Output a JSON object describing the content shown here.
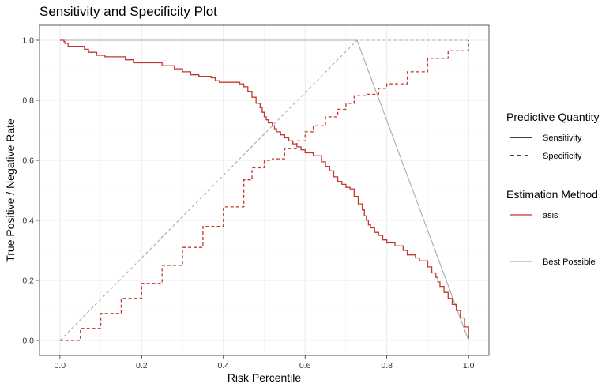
{
  "chart_data": {
    "type": "line",
    "title": "Sensitivity and Specificity Plot",
    "xlabel": "Risk Percentile",
    "ylabel": "True Positive / Negative Rate",
    "xlim": [
      -0.05,
      1.05
    ],
    "ylim": [
      -0.05,
      1.05
    ],
    "xticks": [
      "0.0",
      "0.2",
      "0.4",
      "0.6",
      "0.8",
      "1.0"
    ],
    "yticks": [
      "0.0",
      "0.2",
      "0.4",
      "0.6",
      "0.8",
      "1.0"
    ],
    "grid": true,
    "legend_position": "right",
    "legend": {
      "quantity_title": "Predictive Quantity",
      "quantity_items": [
        {
          "label": "Sensitivity",
          "linestyle": "solid"
        },
        {
          "label": "Specificity",
          "linestyle": "dashed"
        }
      ],
      "method_title": "Estimation Method",
      "method_items": [
        {
          "label": "asis",
          "color": "#c0392b"
        },
        {
          "label": "Best Possible",
          "color": "#aaaaaa"
        }
      ]
    },
    "series": [
      {
        "name": "asis",
        "quantity": "Sensitivity",
        "color": "#c0392b",
        "linestyle": "solid",
        "step": true,
        "x": [
          0.0,
          0.01,
          0.012,
          0.02,
          0.04,
          0.05,
          0.06,
          0.07,
          0.09,
          0.11,
          0.16,
          0.18,
          0.19,
          0.25,
          0.26,
          0.28,
          0.3,
          0.32,
          0.34,
          0.37,
          0.38,
          0.39,
          0.44,
          0.45,
          0.46,
          0.47,
          0.48,
          0.49,
          0.495,
          0.5,
          0.505,
          0.51,
          0.515,
          0.52,
          0.525,
          0.53,
          0.54,
          0.55,
          0.56,
          0.57,
          0.58,
          0.59,
          0.6,
          0.62,
          0.64,
          0.65,
          0.66,
          0.67,
          0.68,
          0.69,
          0.7,
          0.71,
          0.72,
          0.73,
          0.74,
          0.745,
          0.75,
          0.755,
          0.76,
          0.77,
          0.78,
          0.79,
          0.8,
          0.82,
          0.84,
          0.85,
          0.87,
          0.88,
          0.9,
          0.91,
          0.92,
          0.925,
          0.93,
          0.94,
          0.95,
          0.96,
          0.97,
          0.98,
          0.99,
          1.0
        ],
        "y": [
          1.0,
          0.995,
          0.99,
          0.98,
          0.98,
          0.98,
          0.97,
          0.96,
          0.95,
          0.945,
          0.935,
          0.925,
          0.925,
          0.915,
          0.915,
          0.905,
          0.895,
          0.885,
          0.88,
          0.875,
          0.865,
          0.86,
          0.855,
          0.845,
          0.83,
          0.81,
          0.79,
          0.775,
          0.76,
          0.745,
          0.735,
          0.725,
          0.725,
          0.715,
          0.705,
          0.695,
          0.685,
          0.675,
          0.665,
          0.655,
          0.645,
          0.635,
          0.625,
          0.615,
          0.595,
          0.58,
          0.565,
          0.545,
          0.53,
          0.52,
          0.51,
          0.505,
          0.48,
          0.455,
          0.435,
          0.415,
          0.4,
          0.385,
          0.375,
          0.36,
          0.35,
          0.335,
          0.325,
          0.315,
          0.3,
          0.285,
          0.275,
          0.265,
          0.245,
          0.225,
          0.21,
          0.195,
          0.18,
          0.16,
          0.14,
          0.12,
          0.1,
          0.075,
          0.045,
          0.005
        ]
      },
      {
        "name": "asis",
        "quantity": "Specificity",
        "color": "#c0392b",
        "linestyle": "dashed",
        "step": true,
        "x": [
          0.0,
          0.05,
          0.1,
          0.15,
          0.2,
          0.25,
          0.3,
          0.35,
          0.4,
          0.45,
          0.47,
          0.5,
          0.52,
          0.55,
          0.58,
          0.6,
          0.62,
          0.65,
          0.68,
          0.7,
          0.72,
          0.75,
          0.78,
          0.8,
          0.85,
          0.9,
          0.95,
          1.0
        ],
        "y": [
          0.0,
          0.04,
          0.09,
          0.14,
          0.19,
          0.25,
          0.31,
          0.38,
          0.445,
          0.535,
          0.575,
          0.6,
          0.605,
          0.64,
          0.665,
          0.695,
          0.715,
          0.745,
          0.77,
          0.79,
          0.815,
          0.82,
          0.84,
          0.855,
          0.895,
          0.94,
          0.965,
          1.0
        ]
      },
      {
        "name": "Best Possible",
        "quantity": "Sensitivity",
        "color": "#aaaaaa",
        "linestyle": "solid",
        "x": [
          0.0,
          0.727,
          1.0
        ],
        "y": [
          1.0,
          1.0,
          0.0
        ]
      },
      {
        "name": "Best Possible",
        "quantity": "Specificity",
        "color": "#aaaaaa",
        "linestyle": "dashed",
        "x": [
          0.0,
          0.727,
          1.0
        ],
        "y": [
          0.0,
          1.0,
          1.0
        ]
      }
    ]
  }
}
